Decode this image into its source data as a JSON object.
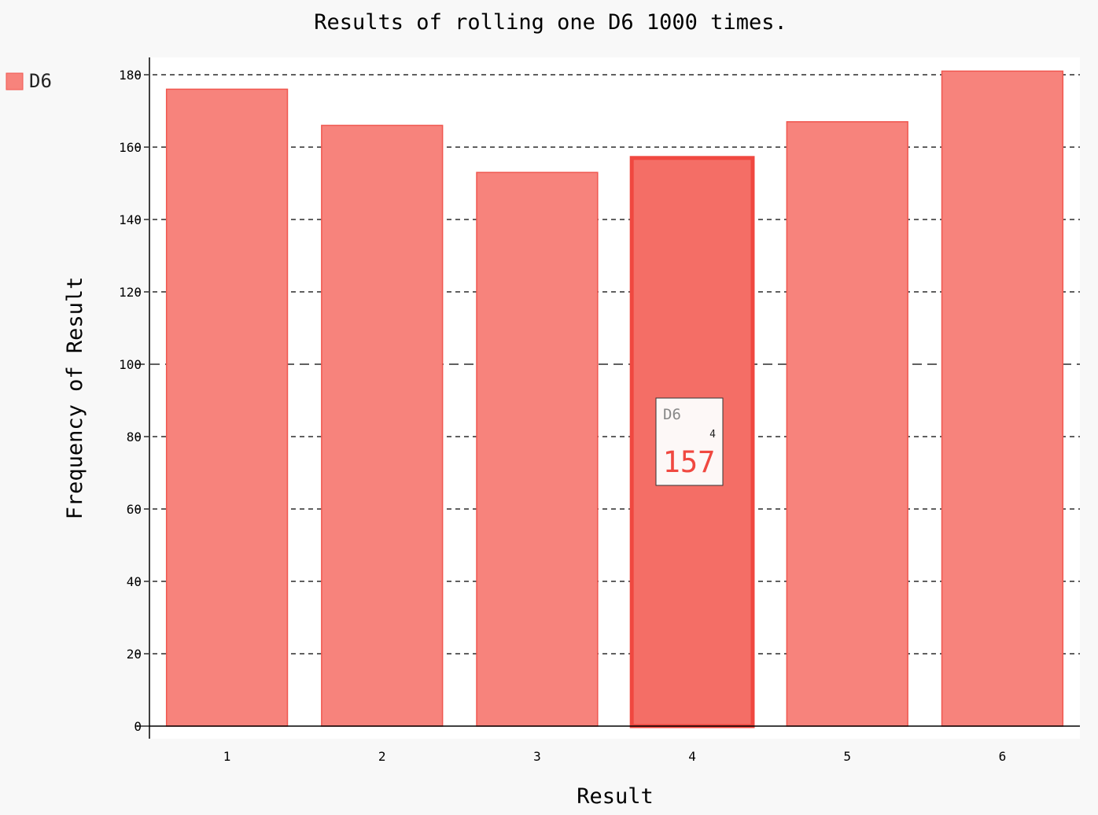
{
  "chart_data": {
    "type": "bar",
    "title": "Results of rolling one D6 1000 times.",
    "xlabel": "Result",
    "ylabel": "Frequency of Result",
    "categories": [
      "1",
      "2",
      "3",
      "4",
      "5",
      "6"
    ],
    "series": [
      {
        "name": "D6",
        "values": [
          176,
          166,
          153,
          157,
          167,
          181
        ]
      }
    ],
    "ylim": [
      0,
      180
    ],
    "yticks": [
      0,
      20,
      40,
      60,
      80,
      100,
      120,
      140,
      160,
      180
    ],
    "grid": true,
    "legend_position": "top-left",
    "highlight": {
      "category": "4",
      "series": "D6",
      "value": 157
    },
    "tooltip": {
      "series": "D6",
      "x_label": "4",
      "value": "157"
    },
    "colors": {
      "bar_fill": "#f7837c",
      "bar_stroke": "#f0574f",
      "highlight_fill": "#f46e66",
      "highlight_stroke": "#f04840",
      "tooltip_value": "#f04840",
      "background": "#f8f8f8",
      "plot_background": "#ffffff"
    }
  }
}
